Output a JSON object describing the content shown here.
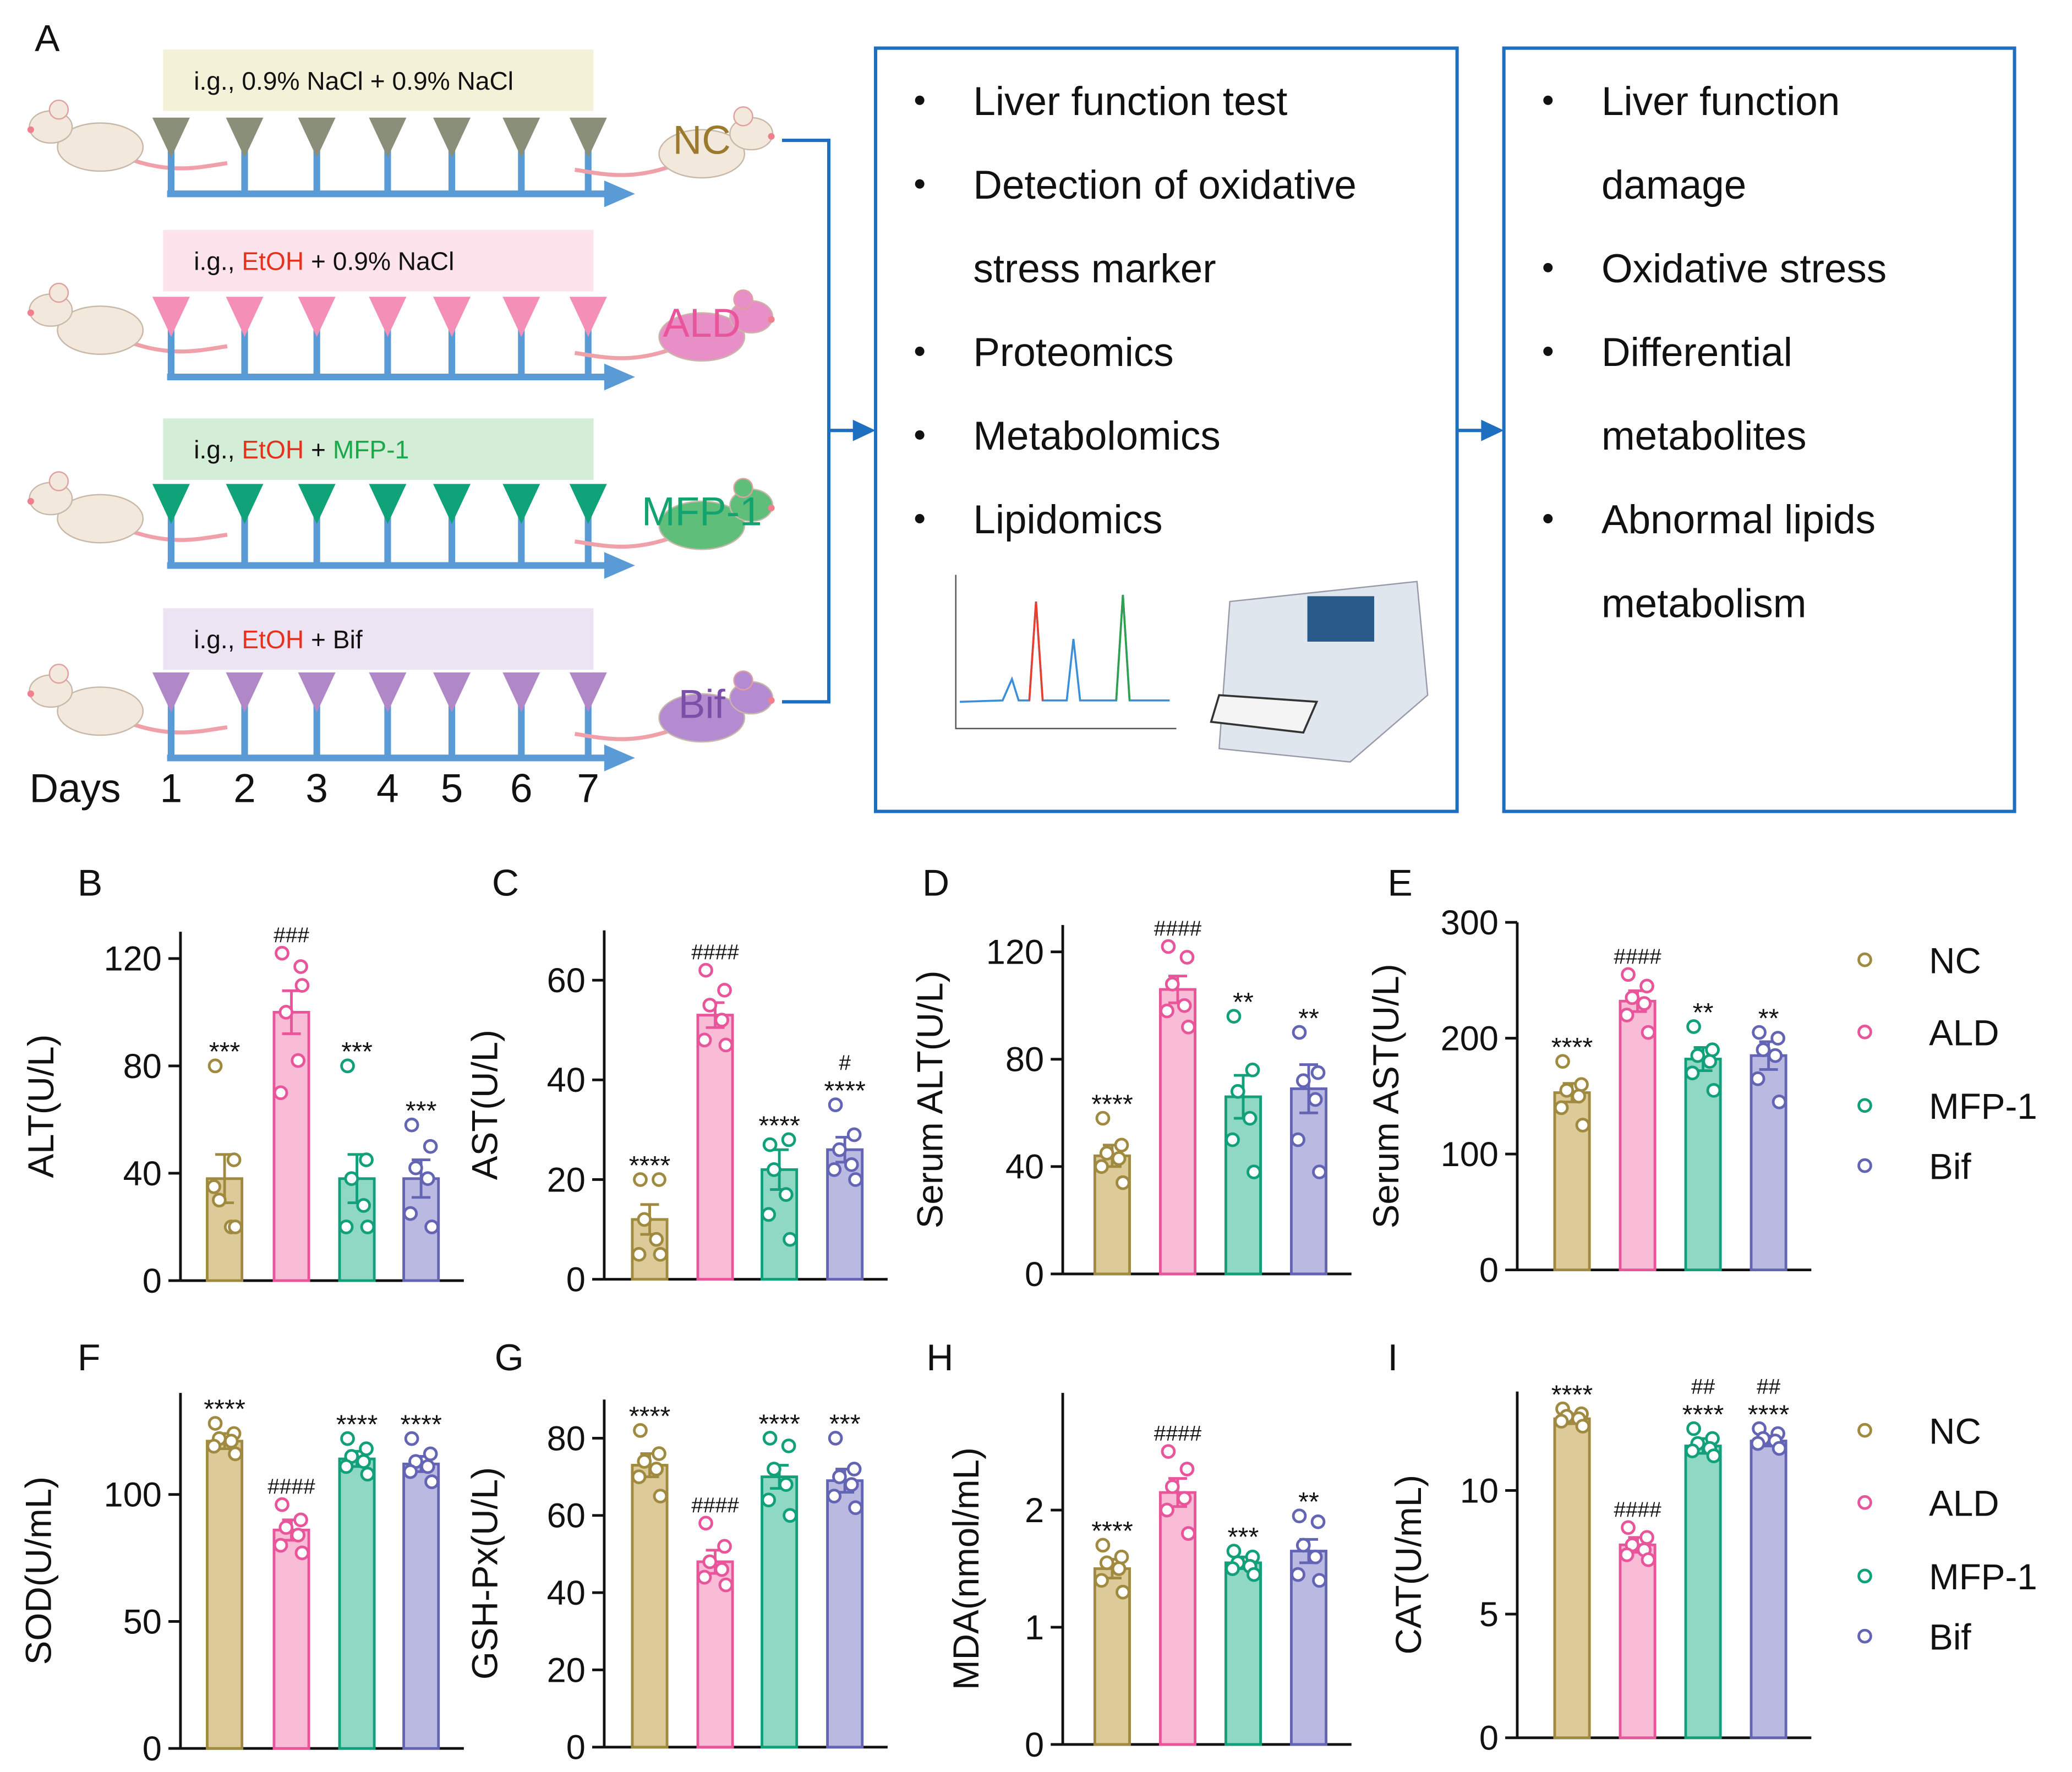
{
  "diagram": {
    "panel": "A",
    "days_label": "Days",
    "days": [
      1,
      2,
      3,
      4,
      5,
      6,
      7
    ],
    "groups": [
      {
        "name": "NC",
        "name_color": "#9b7a2e",
        "banner_color": "#f3f2d8",
        "arrow_color": "#8a8f7a",
        "mouse_color": "#f3e8dc",
        "treatment": [
          {
            "text": "i.g., 0.9% NaCl + 0.9% NaCl",
            "color": "#111111"
          }
        ]
      },
      {
        "name": "ALD",
        "name_color": "#e8559a",
        "banner_color": "#fde4ec",
        "arrow_color": "#f48fb8",
        "mouse_color": "#e98fc8",
        "treatment": [
          {
            "text": "i.g., ",
            "color": "#111111"
          },
          {
            "text": "EtOH",
            "color": "#e5321f"
          },
          {
            "text": " + 0.9% NaCl",
            "color": "#111111"
          }
        ]
      },
      {
        "name": "MFP-1",
        "name_color": "#13a36e",
        "banner_color": "#d4edd6",
        "arrow_color": "#10a37a",
        "mouse_color": "#5fbf7a",
        "treatment": [
          {
            "text": "i.g., ",
            "color": "#111111"
          },
          {
            "text": "EtOH",
            "color": "#e5321f"
          },
          {
            "text": " + ",
            "color": "#111111"
          },
          {
            "text": "MFP-1",
            "color": "#1aa84a"
          }
        ]
      },
      {
        "name": "Bif",
        "name_color": "#7b4fa8",
        "banner_color": "#ece4f2",
        "arrow_color": "#b088c8",
        "mouse_color": "#b48ad0",
        "treatment": [
          {
            "text": "i.g., ",
            "color": "#111111"
          },
          {
            "text": "EtOH",
            "color": "#e5321f"
          },
          {
            "text": " + Bif",
            "color": "#111111"
          }
        ]
      }
    ],
    "methods": [
      [
        "Liver function test"
      ],
      [
        "Detection of oxidative",
        "stress marker"
      ],
      [
        "Proteomics"
      ],
      [
        "Metabolomics"
      ],
      [
        "Lipidomics"
      ]
    ],
    "outcomes": [
      [
        "Liver function",
        "damage"
      ],
      [
        "Oxidative stress"
      ],
      [
        "Differential",
        "metabolites"
      ],
      [
        "Abnormal lipids",
        "metabolism"
      ]
    ],
    "box_color": "#1f6fc0"
  },
  "chart_data": [
    {
      "type": "bar",
      "panel": "B",
      "ylabel": "ALT(U/L)",
      "categories": [
        "NC",
        "ALD",
        "MFP-1",
        "Bif"
      ],
      "values": [
        38,
        100,
        38,
        38
      ],
      "errors": [
        9,
        8,
        9,
        7
      ],
      "points": [
        [
          80,
          45,
          30,
          20,
          35,
          20
        ],
        [
          122,
          117,
          100,
          82,
          70,
          110
        ],
        [
          80,
          45,
          38,
          28,
          20,
          20
        ],
        [
          58,
          50,
          42,
          38,
          25,
          20
        ]
      ],
      "stars": [
        "***",
        null,
        "***",
        "***"
      ],
      "hashes": [
        null,
        "###",
        null,
        null
      ],
      "ylim": [
        0,
        130
      ],
      "yticks": [
        0,
        40,
        80,
        120
      ],
      "colors": [
        "#dccb98",
        "#f9bcd6",
        "#8fd9c4",
        "#b9b9e2"
      ],
      "edge_colors": [
        "#a08a40",
        "#e8559a",
        "#12a07a",
        "#6464b4"
      ]
    },
    {
      "type": "bar",
      "panel": "C",
      "ylabel": "AST(U/L)",
      "categories": [
        "NC",
        "ALD",
        "MFP-1",
        "Bif"
      ],
      "values": [
        12,
        53,
        22,
        26
      ],
      "errors": [
        3,
        2.5,
        4,
        2.5
      ],
      "points": [
        [
          20,
          20,
          12,
          8,
          5,
          5
        ],
        [
          62,
          58,
          55,
          52,
          48,
          47
        ],
        [
          27,
          28,
          22,
          17,
          13,
          8
        ],
        [
          35,
          29,
          26,
          23,
          22,
          20
        ]
      ],
      "stars": [
        "****",
        null,
        "****",
        "****"
      ],
      "hashes": [
        null,
        "####",
        null,
        "#"
      ],
      "ylim": [
        0,
        70
      ],
      "yticks": [
        0,
        20,
        40,
        60
      ],
      "colors": [
        "#dccb98",
        "#f9bcd6",
        "#8fd9c4",
        "#b9b9e2"
      ],
      "edge_colors": [
        "#a08a40",
        "#e8559a",
        "#12a07a",
        "#6464b4"
      ]
    },
    {
      "type": "bar",
      "panel": "D",
      "ylabel": "Serum ALT(U/L)",
      "categories": [
        "NC",
        "ALD",
        "MFP-1",
        "Bif"
      ],
      "values": [
        44,
        106,
        66,
        69
      ],
      "errors": [
        4,
        5,
        8,
        9
      ],
      "points": [
        [
          58,
          48,
          45,
          43,
          40,
          34
        ],
        [
          122,
          118,
          108,
          100,
          98,
          92
        ],
        [
          96,
          76,
          68,
          58,
          50,
          38
        ],
        [
          90,
          75,
          72,
          65,
          50,
          38
        ]
      ],
      "stars": [
        "****",
        null,
        "**",
        "**"
      ],
      "hashes": [
        null,
        "####",
        null,
        null
      ],
      "ylim": [
        0,
        130
      ],
      "yticks": [
        0,
        40,
        80,
        120
      ],
      "colors": [
        "#dccb98",
        "#f9bcd6",
        "#8fd9c4",
        "#b9b9e2"
      ],
      "edge_colors": [
        "#a08a40",
        "#e8559a",
        "#12a07a",
        "#6464b4"
      ]
    },
    {
      "type": "bar",
      "panel": "E",
      "ylabel": "Serum AST(U/L)",
      "categories": [
        "NC",
        "ALD",
        "MFP-1",
        "Bif"
      ],
      "values": [
        153,
        232,
        182,
        185
      ],
      "errors": [
        8,
        9,
        10,
        12
      ],
      "points": [
        [
          180,
          160,
          155,
          150,
          140,
          125
        ],
        [
          255,
          245,
          235,
          230,
          220,
          205
        ],
        [
          210,
          190,
          185,
          180,
          170,
          155
        ],
        [
          205,
          200,
          190,
          185,
          165,
          145
        ]
      ],
      "stars": [
        "****",
        null,
        "**",
        "**"
      ],
      "hashes": [
        null,
        "####",
        null,
        null
      ],
      "ylim": [
        0,
        300
      ],
      "yticks": [
        0,
        100,
        200,
        300
      ],
      "legend": true,
      "colors": [
        "#dccb98",
        "#f9bcd6",
        "#8fd9c4",
        "#b9b9e2"
      ],
      "edge_colors": [
        "#a08a40",
        "#e8559a",
        "#12a07a",
        "#6464b4"
      ]
    },
    {
      "type": "bar",
      "panel": "F",
      "ylabel": "SOD(U/mL)",
      "categories": [
        "NC",
        "ALD",
        "MFP-1",
        "Bif"
      ],
      "values": [
        121,
        86,
        114,
        112
      ],
      "errors": [
        3,
        4,
        3,
        3
      ],
      "points": [
        [
          128,
          124,
          122,
          121,
          119,
          116
        ],
        [
          96,
          90,
          87,
          84,
          80,
          77
        ],
        [
          122,
          118,
          115,
          113,
          111,
          108
        ],
        [
          122,
          116,
          113,
          111,
          109,
          105
        ]
      ],
      "stars": [
        "****",
        null,
        "****",
        "****"
      ],
      "hashes": [
        null,
        "####",
        null,
        null
      ],
      "ylim": [
        0,
        140
      ],
      "yticks": [
        0,
        50,
        100
      ],
      "colors": [
        "#dccb98",
        "#f9bcd6",
        "#8fd9c4",
        "#b9b9e2"
      ],
      "edge_colors": [
        "#a08a40",
        "#e8559a",
        "#12a07a",
        "#6464b4"
      ]
    },
    {
      "type": "bar",
      "panel": "G",
      "ylabel": "GSH-Px(U/L)",
      "categories": [
        "NC",
        "ALD",
        "MFP-1",
        "Bif"
      ],
      "values": [
        73,
        48,
        70,
        69
      ],
      "errors": [
        3,
        3,
        3,
        3
      ],
      "points": [
        [
          82,
          76,
          74,
          72,
          70,
          65
        ],
        [
          58,
          52,
          48,
          46,
          44,
          42
        ],
        [
          80,
          78,
          72,
          68,
          64,
          60
        ],
        [
          80,
          72,
          70,
          68,
          65,
          62
        ]
      ],
      "stars": [
        "****",
        null,
        "****",
        "***"
      ],
      "hashes": [
        null,
        "####",
        null,
        null
      ],
      "ylim": [
        0,
        90
      ],
      "yticks": [
        0,
        20,
        40,
        60,
        80
      ],
      "colors": [
        "#dccb98",
        "#f9bcd6",
        "#8fd9c4",
        "#b9b9e2"
      ],
      "edge_colors": [
        "#a08a40",
        "#e8559a",
        "#12a07a",
        "#6464b4"
      ]
    },
    {
      "type": "bar",
      "panel": "H",
      "ylabel": "MDA(nmol/mL)",
      "categories": [
        "NC",
        "ALD",
        "MFP-1",
        "Bif"
      ],
      "values": [
        1.5,
        2.15,
        1.55,
        1.65
      ],
      "errors": [
        0.08,
        0.12,
        0.05,
        0.1
      ],
      "points": [
        [
          1.7,
          1.6,
          1.55,
          1.5,
          1.4,
          1.3
        ],
        [
          2.5,
          2.35,
          2.2,
          2.1,
          2.0,
          1.8
        ],
        [
          1.65,
          1.6,
          1.55,
          1.52,
          1.5,
          1.45
        ],
        [
          1.95,
          1.9,
          1.7,
          1.6,
          1.45,
          1.4
        ]
      ],
      "stars": [
        "****",
        null,
        "***",
        "**"
      ],
      "hashes": [
        null,
        "####",
        null,
        null
      ],
      "ylim": [
        0,
        3
      ],
      "yticks": [
        0,
        1,
        2
      ],
      "colors": [
        "#dccb98",
        "#f9bcd6",
        "#8fd9c4",
        "#b9b9e2"
      ],
      "edge_colors": [
        "#a08a40",
        "#e8559a",
        "#12a07a",
        "#6464b4"
      ]
    },
    {
      "type": "bar",
      "panel": "I",
      "ylabel": "CAT(U/mL)",
      "categories": [
        "NC",
        "ALD",
        "MFP-1",
        "Bif"
      ],
      "values": [
        12.9,
        7.8,
        11.8,
        12.0
      ],
      "errors": [
        0.2,
        0.3,
        0.3,
        0.2
      ],
      "points": [
        [
          13.3,
          13.1,
          13.0,
          12.9,
          12.8,
          12.6
        ],
        [
          8.5,
          8.1,
          7.8,
          7.6,
          7.4,
          7.2
        ],
        [
          12.5,
          12.1,
          11.9,
          11.7,
          11.6,
          11.4
        ],
        [
          12.5,
          12.3,
          12.1,
          12.0,
          11.9,
          11.7
        ]
      ],
      "stars": [
        "****",
        null,
        "****",
        "****"
      ],
      "hashes": [
        null,
        "####",
        "##",
        "##"
      ],
      "ylim": [
        0,
        14
      ],
      "yticks": [
        0,
        5,
        10
      ],
      "legend": true,
      "colors": [
        "#dccb98",
        "#f9bcd6",
        "#8fd9c4",
        "#b9b9e2"
      ],
      "edge_colors": [
        "#a08a40",
        "#e8559a",
        "#12a07a",
        "#6464b4"
      ]
    }
  ]
}
